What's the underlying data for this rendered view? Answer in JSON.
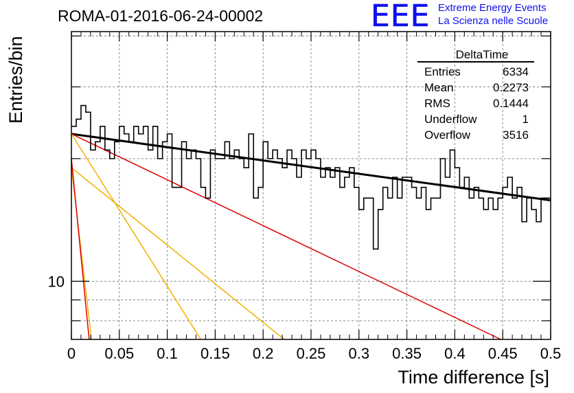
{
  "header": {
    "run_title": "ROMA-01-2016-06-24-00002",
    "logo_mark": "EEE",
    "logo_line1": "Extreme Energy Events",
    "logo_line2": "La Scienza nelle Scuole",
    "brand_color": "#1010ee"
  },
  "stats_box": {
    "title": "DeltaTime",
    "rows": [
      {
        "label": "Entries",
        "value": "6334"
      },
      {
        "label": "Mean",
        "value": "0.2273"
      },
      {
        "label": "RMS",
        "value": "0.1444"
      },
      {
        "label": "Underflow",
        "value": "1"
      },
      {
        "label": "Overflow",
        "value": "3516"
      }
    ]
  },
  "chart_data": {
    "type": "histogram",
    "title": "ROMA-01-2016-06-24-00002",
    "xlabel": "Time difference [s]",
    "ylabel": "Entries/bin",
    "xlim": [
      0,
      0.5
    ],
    "ylim": [
      7.2,
      41
    ],
    "yscale": "log",
    "grid": true,
    "x_ticks": [
      "0",
      "0.05",
      "0.1",
      "0.15",
      "0.2",
      "0.25",
      "0.3",
      "0.35",
      "0.4",
      "0.45",
      "0.5"
    ],
    "x_tick_values": [
      0,
      0.05,
      0.1,
      0.15,
      0.2,
      0.25,
      0.3,
      0.35,
      0.4,
      0.45,
      0.5
    ],
    "y_tick_labels": [
      {
        "value": 10,
        "label": "10"
      }
    ],
    "bin_width": 0.005,
    "bin_values": [
      24,
      25,
      27,
      26,
      21,
      22,
      24,
      21,
      20,
      22,
      24,
      23,
      22,
      24,
      23,
      24,
      21,
      24,
      20,
      22,
      23,
      17,
      17,
      22,
      20,
      21,
      20,
      17,
      16,
      21,
      20,
      20,
      22,
      20,
      21,
      20,
      19,
      23,
      16,
      17,
      22,
      20,
      21,
      20,
      19,
      21,
      20,
      18,
      21,
      20,
      21,
      20,
      18,
      19,
      18,
      19,
      17,
      18,
      19,
      17,
      15,
      16,
      16,
      12,
      15,
      17,
      16,
      18,
      16,
      18,
      18,
      17,
      16,
      17,
      15,
      16,
      16,
      20,
      18,
      21,
      19,
      17,
      18,
      16,
      17,
      16,
      15,
      16,
      15,
      16,
      17,
      18,
      16,
      17,
      14,
      16,
      15,
      14,
      16,
      16
    ],
    "fits": [
      {
        "color": "#000000",
        "width": 3,
        "points": [
          [
            0,
            23.0
          ],
          [
            0.5,
            15.8
          ]
        ]
      },
      {
        "color": "#dd0000",
        "width": 1.5,
        "points": [
          [
            0,
            23.0
          ],
          [
            0.448,
            7.2
          ]
        ]
      },
      {
        "color": "#f0b000",
        "width": 1.5,
        "points": [
          [
            0,
            23.0
          ],
          [
            0.135,
            7.2
          ]
        ]
      },
      {
        "color": "#f0b000",
        "width": 1.5,
        "points": [
          [
            0,
            19.0
          ],
          [
            0.222,
            7.2
          ]
        ]
      },
      {
        "color": "#f0b000",
        "width": 1.5,
        "points": [
          [
            0,
            19.0
          ],
          [
            0.021,
            7.2
          ]
        ]
      },
      {
        "color": "#dd0000",
        "width": 1.5,
        "points": [
          [
            0,
            20.0
          ],
          [
            0.0185,
            7.2
          ]
        ]
      }
    ]
  }
}
